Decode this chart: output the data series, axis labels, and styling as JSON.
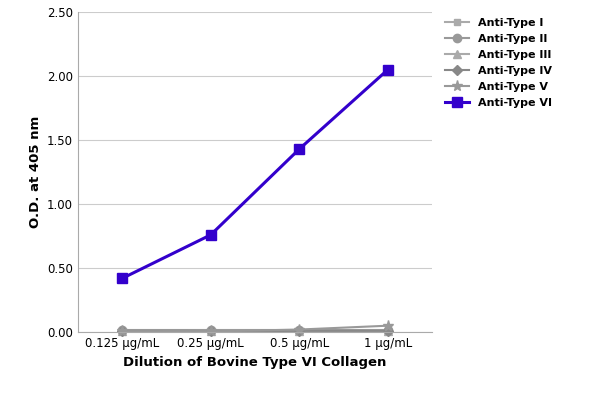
{
  "x_positions": [
    0,
    1,
    2,
    3
  ],
  "x_labels": [
    "0.125 μg/mL",
    "0.25 μg/mL",
    "0.5 μg/mL",
    "1 μg/mL"
  ],
  "series": [
    {
      "label": "Anti-Type I",
      "values": [
        0.005,
        0.005,
        0.005,
        0.01
      ],
      "color": "#aaaaaa",
      "marker": "s",
      "linewidth": 1.5,
      "markersize": 5
    },
    {
      "label": "Anti-Type II",
      "values": [
        0.015,
        0.015,
        0.015,
        0.015
      ],
      "color": "#999999",
      "marker": "o",
      "linewidth": 1.5,
      "markersize": 6
    },
    {
      "label": "Anti-Type III",
      "values": [
        0.005,
        0.01,
        0.01,
        0.01
      ],
      "color": "#aaaaaa",
      "marker": "^",
      "linewidth": 1.5,
      "markersize": 6
    },
    {
      "label": "Anti-Type IV",
      "values": [
        0.005,
        0.005,
        0.01,
        0.01
      ],
      "color": "#888888",
      "marker": "D",
      "markersize": 5,
      "linewidth": 1.5
    },
    {
      "label": "Anti-Type V",
      "values": [
        0.005,
        0.005,
        0.02,
        0.05
      ],
      "color": "#999999",
      "marker": "*",
      "linewidth": 1.5,
      "markersize": 8
    },
    {
      "label": "Anti-Type VI",
      "values": [
        0.42,
        0.76,
        1.43,
        2.05
      ],
      "color": "#3300CC",
      "marker": "s",
      "linewidth": 2.2,
      "markersize": 7
    }
  ],
  "ylabel": "O.D. at 405 nm",
  "xlabel": "Dilution of Bovine Type VI Collagen",
  "ylim": [
    0.0,
    2.5
  ],
  "yticks": [
    0.0,
    0.5,
    1.0,
    1.5,
    2.0,
    2.5
  ],
  "background_color": "#ffffff",
  "grid_color": "#cccccc",
  "legend_fontsize": 8,
  "axis_label_fontsize": 9.5,
  "tick_fontsize": 8.5,
  "figwidth": 6.0,
  "figheight": 4.05,
  "dpi": 100
}
